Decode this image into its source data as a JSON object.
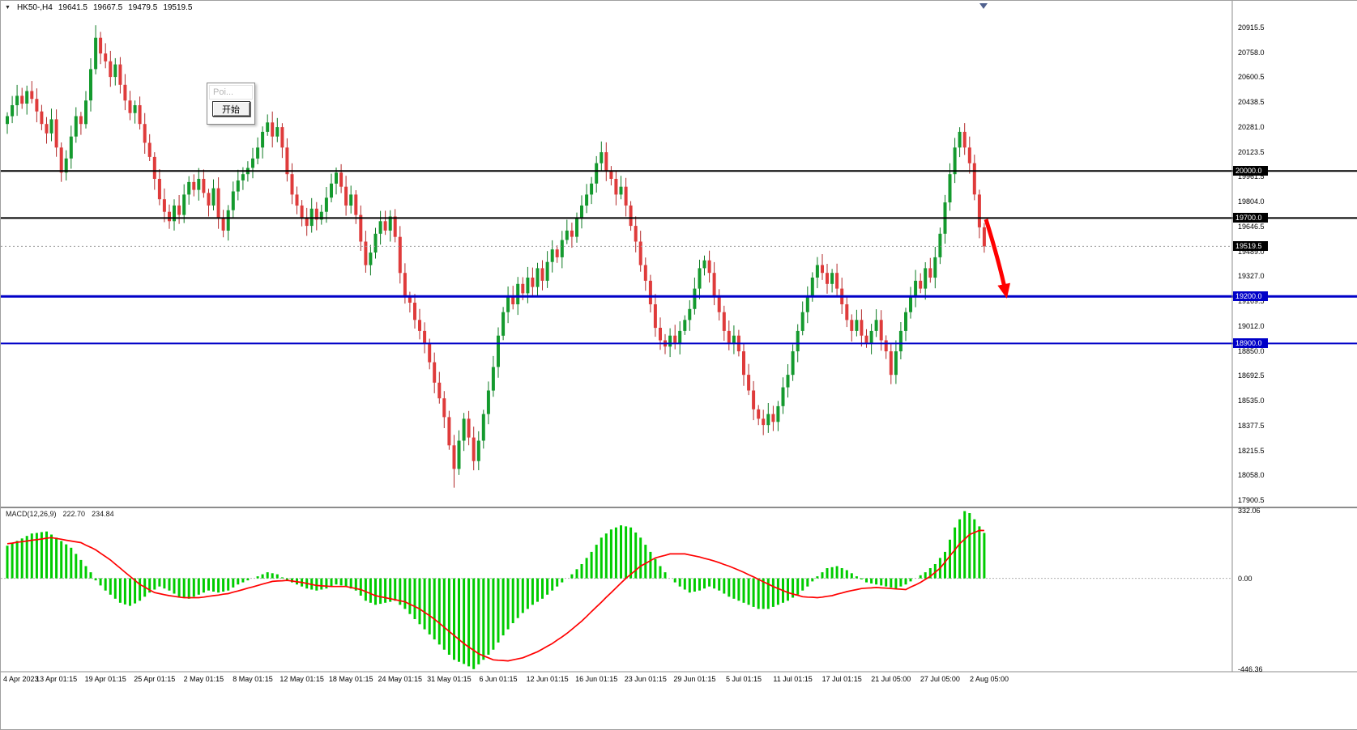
{
  "titlebar": {
    "symbol": "HK50-,H4",
    "open": "19641.5",
    "high": "19667.5",
    "low": "19479.5",
    "close": "19519.5"
  },
  "dialog": {
    "title": "Poi...",
    "start_button": "开始"
  },
  "colors": {
    "up": "#149A2E",
    "down": "#DF3B3B",
    "wick_up": "#0E7A23",
    "wick_down": "#B22A2A",
    "macd_hist": "#00CC00",
    "macd_signal": "#FF0000",
    "level_black": "#000000",
    "level_blue": "#0000C8",
    "arrow": "#FF0000",
    "axis_text": "#000000",
    "separator": "#8C8C8C"
  },
  "chart_data": {
    "type": "candlestick",
    "symbol": "HK50-",
    "timeframe": "H4",
    "title": "HK50-,H4 19641.5 19667.5 19479.5 19519.5",
    "x_labels": [
      "4 Apr 2023",
      "13 Apr 01:15",
      "19 Apr 01:15",
      "25 Apr 01:15",
      "2 May 01:15",
      "8 May 01:15",
      "12 May 01:15",
      "18 May 01:15",
      "24 May 01:15",
      "31 May 01:15",
      "6 Jun 01:15",
      "12 Jun 01:15",
      "16 Jun 01:15",
      "23 Jun 01:15",
      "29 Jun 01:15",
      "5 Jul 01:15",
      "11 Jul 01:15",
      "17 Jul 01:15",
      "21 Jul 05:00",
      "27 Jul 05:00",
      "2 Aug 05:00"
    ],
    "y_axis": {
      "max": 20915.5,
      "min": 17900.5,
      "ticks": [
        "20915.5",
        "20758.0",
        "20600.5",
        "20438.5",
        "20281.0",
        "20123.5",
        "19961.5",
        "19804.0",
        "19646.5",
        "19489.0",
        "19327.0",
        "19169.5",
        "19012.0",
        "18850.0",
        "18692.5",
        "18535.0",
        "18377.5",
        "18215.5",
        "18058.0",
        "17900.5"
      ]
    },
    "open_first": 20300,
    "closes": [
      20350,
      20420,
      20480,
      20430,
      20510,
      20460,
      20380,
      20300,
      20240,
      20330,
      20150,
      19990,
      20080,
      20220,
      20350,
      20300,
      20450,
      20650,
      20850,
      20750,
      20700,
      20600,
      20680,
      20550,
      20450,
      20370,
      20420,
      20300,
      20180,
      20090,
      19950,
      19820,
      19740,
      19680,
      19780,
      19720,
      19850,
      19930,
      19880,
      19950,
      19860,
      19780,
      19890,
      19700,
      19620,
      19750,
      19870,
      19940,
      19980,
      20020,
      20080,
      20150,
      20250,
      20310,
      20220,
      20280,
      20150,
      19980,
      19850,
      19780,
      19700,
      19650,
      19760,
      19690,
      19740,
      19830,
      19920,
      19990,
      19900,
      19780,
      19850,
      19720,
      19550,
      19400,
      19480,
      19600,
      19680,
      19620,
      19710,
      19580,
      19350,
      19200,
      19160,
      19050,
      18980,
      18900,
      18780,
      18650,
      18550,
      18430,
      18250,
      18100,
      18280,
      18420,
      18300,
      18150,
      18280,
      18450,
      18600,
      18750,
      18950,
      19100,
      19200,
      19150,
      19280,
      19220,
      19320,
      19260,
      19380,
      19300,
      19420,
      19500,
      19450,
      19560,
      19620,
      19580,
      19700,
      19780,
      19850,
      19920,
      20050,
      20120,
      20000,
      19950,
      19850,
      19900,
      19780,
      19650,
      19550,
      19400,
      19300,
      19150,
      19000,
      18920,
      18880,
      18950,
      18900,
      18980,
      19050,
      19120,
      19250,
      19380,
      19430,
      19350,
      19200,
      19100,
      18980,
      18900,
      18950,
      18850,
      18700,
      18600,
      18480,
      18420,
      18380,
      18450,
      18400,
      18500,
      18620,
      18700,
      18850,
      18980,
      19100,
      19200,
      19320,
      19400,
      19350,
      19280,
      19350,
      19250,
      19150,
      19050,
      18980,
      19050,
      18950,
      18900,
      18980,
      19050,
      18920,
      18850,
      18700,
      18850,
      18980,
      19100,
      19200,
      19300,
      19250,
      19380,
      19320,
      19450,
      19600,
      19800,
      19980,
      20150,
      20250,
      20150,
      20050,
      19850,
      19641,
      19519.5
    ],
    "spike_index": 18,
    "spike_high": 20930,
    "low_index": 91,
    "lowest_low": 17980,
    "last_candle": {
      "open": 19641.5,
      "high": 19667.5,
      "low": 19479.5,
      "close": 19519.5
    },
    "levels": [
      {
        "label": "20000.0",
        "value": 20000.0,
        "color": "#000000",
        "width": 2
      },
      {
        "label": "19700.0",
        "value": 19700.0,
        "color": "#000000",
        "width": 2
      },
      {
        "label": "19200.0",
        "value": 19200.0,
        "color": "#0000C8",
        "width": 3
      },
      {
        "label": "18900.0",
        "value": 18900.0,
        "color": "#0000C8",
        "width": 2
      }
    ],
    "current_price": {
      "label": "19519.5",
      "value": 19519.5
    },
    "arrow_annotation": {
      "from_price": 19690,
      "to_price": 19230,
      "color": "#FF0000"
    },
    "macd": {
      "label": "MACD(12,26,9)",
      "main_value": "222.70",
      "signal_value": "234.84",
      "axis_max": 332.06,
      "axis_min": -446.36,
      "axis_ticks": [
        {
          "label": "332.06",
          "value": 332.06
        },
        {
          "label": "0.00",
          "value": 0
        },
        {
          "label": "-446.36",
          "value": -446.36
        }
      ],
      "hist": [
        160,
        172,
        184,
        196,
        208,
        220,
        223,
        227,
        230,
        215,
        200,
        183,
        167,
        150,
        120,
        90,
        60,
        30,
        -10,
        -35,
        -60,
        -80,
        -100,
        -120,
        -128,
        -135,
        -123,
        -110,
        -90,
        -70,
        -55,
        -40,
        -50,
        -60,
        -75,
        -90,
        -95,
        -100,
        -90,
        -80,
        -70,
        -60,
        -65,
        -70,
        -65,
        -60,
        -45,
        -30,
        -20,
        -10,
        0,
        10,
        20,
        30,
        25,
        20,
        5,
        -10,
        -20,
        -30,
        -40,
        -50,
        -55,
        -60,
        -55,
        -50,
        -40,
        -30,
        -35,
        -40,
        -50,
        -60,
        -85,
        -110,
        -120,
        -130,
        -125,
        -120,
        -115,
        -110,
        -130,
        -150,
        -175,
        -200,
        -225,
        -250,
        -275,
        -300,
        -325,
        -350,
        -375,
        -400,
        -410,
        -420,
        -432,
        -445,
        -422,
        -400,
        -375,
        -350,
        -315,
        -280,
        -250,
        -220,
        -195,
        -170,
        -150,
        -130,
        -115,
        -100,
        -80,
        -60,
        -40,
        -20,
        0,
        20,
        45,
        70,
        100,
        130,
        165,
        200,
        220,
        240,
        250,
        260,
        255,
        250,
        225,
        200,
        165,
        130,
        95,
        60,
        30,
        0,
        -20,
        -40,
        -55,
        -70,
        -65,
        -60,
        -50,
        -40,
        -50,
        -60,
        -75,
        -90,
        -100,
        -110,
        -120,
        -130,
        -140,
        -150,
        -150,
        -150,
        -140,
        -130,
        -120,
        -110,
        -95,
        -80,
        -60,
        -40,
        -15,
        10,
        30,
        50,
        55,
        60,
        50,
        40,
        25,
        10,
        -5,
        -20,
        -25,
        -30,
        -35,
        -40,
        -45,
        -50,
        -40,
        -30,
        -15,
        0,
        15,
        30,
        50,
        70,
        100,
        130,
        190,
        250,
        290,
        330,
        320,
        290,
        255,
        222.7
      ],
      "signal": [
        170,
        173,
        177,
        180,
        183,
        187,
        190,
        193,
        197,
        200,
        196,
        192,
        187,
        183,
        179,
        175,
        163,
        152,
        140,
        123,
        107,
        90,
        70,
        50,
        30,
        10,
        -10,
        -30,
        -43,
        -57,
        -70,
        -75,
        -80,
        -85,
        -88,
        -92,
        -95,
        -95,
        -95,
        -95,
        -92,
        -88,
        -85,
        -82,
        -78,
        -75,
        -68,
        -62,
        -55,
        -48,
        -42,
        -35,
        -28,
        -22,
        -15,
        -13,
        -12,
        -10,
        -13,
        -17,
        -20,
        -25,
        -30,
        -35,
        -37,
        -38,
        -40,
        -40,
        -40,
        -40,
        -45,
        -50,
        -55,
        -65,
        -75,
        -85,
        -90,
        -95,
        -100,
        -105,
        -110,
        -115,
        -127,
        -138,
        -150,
        -167,
        -183,
        -200,
        -220,
        -240,
        -260,
        -280,
        -300,
        -320,
        -337,
        -353,
        -370,
        -380,
        -390,
        -400,
        -402,
        -403,
        -405,
        -400,
        -395,
        -390,
        -380,
        -370,
        -360,
        -347,
        -333,
        -320,
        -303,
        -287,
        -270,
        -250,
        -230,
        -210,
        -187,
        -163,
        -140,
        -117,
        -93,
        -70,
        -47,
        -23,
        0,
        20,
        40,
        60,
        73,
        87,
        100,
        107,
        113,
        120,
        120,
        120,
        120,
        115,
        110,
        105,
        98,
        92,
        85,
        77,
        68,
        60,
        50,
        40,
        30,
        18,
        7,
        -5,
        -17,
        -28,
        -40,
        -50,
        -60,
        -70,
        -77,
        -83,
        -90,
        -92,
        -93,
        -95,
        -92,
        -88,
        -85,
        -78,
        -72,
        -65,
        -60,
        -55,
        -50,
        -48,
        -47,
        -45,
        -47,
        -48,
        -50,
        -52,
        -53,
        -55,
        -43,
        -32,
        -20,
        -5,
        10,
        30,
        50,
        80,
        110,
        140,
        170,
        192,
        215,
        225,
        235,
        234.8
      ]
    }
  }
}
